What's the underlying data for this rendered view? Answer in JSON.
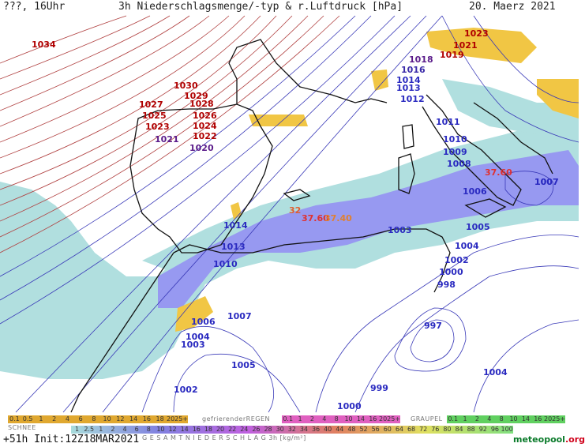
{
  "header": {
    "left": "???, 16Uhr",
    "title": "3h Niederschlagsmenge/-typ & r.Luftdruck [hPa]",
    "date": "20. Maerz 2021"
  },
  "pressure_labels": [
    {
      "text": "1034",
      "color": "#b00000"
    },
    {
      "text": "1030",
      "color": "#b00000"
    },
    {
      "text": "1029",
      "color": "#b00000"
    },
    {
      "text": "1028",
      "color": "#b00000"
    },
    {
      "text": "1027",
      "color": "#b00000"
    },
    {
      "text": "1026",
      "color": "#b00000"
    },
    {
      "text": "1025",
      "color": "#b00000"
    },
    {
      "text": "1024",
      "color": "#b00000"
    },
    {
      "text": "1023",
      "color": "#b00000"
    },
    {
      "text": "1022",
      "color": "#b00000"
    },
    {
      "text": "1021",
      "color": "#5a1b8a"
    },
    {
      "text": "1020",
      "color": "#5a1b8a"
    },
    {
      "text": "1023",
      "color": "#b00000"
    },
    {
      "text": "1021",
      "color": "#b00000"
    },
    {
      "text": "1019",
      "color": "#b00000"
    },
    {
      "text": "1018",
      "color": "#5a1b8a"
    },
    {
      "text": "1016",
      "color": "#3a2aa8"
    },
    {
      "text": "1014",
      "color": "#2a2ac0"
    },
    {
      "text": "1013",
      "color": "#2a2ac0"
    },
    {
      "text": "1012",
      "color": "#2a2ac0"
    },
    {
      "text": "1011",
      "color": "#2a2ac0"
    },
    {
      "text": "1010",
      "color": "#2a2ac0"
    },
    {
      "text": "1009",
      "color": "#2a2ac0"
    },
    {
      "text": "1008",
      "color": "#2a2ac0"
    },
    {
      "text": "1007",
      "color": "#2a2ac0"
    },
    {
      "text": "1006",
      "color": "#2a2ac0"
    },
    {
      "text": "1014",
      "color": "#2a2ac0"
    },
    {
      "text": "1013",
      "color": "#2a2ac0"
    },
    {
      "text": "1010",
      "color": "#2a2ac0"
    },
    {
      "text": "1003",
      "color": "#2a2ac0"
    },
    {
      "text": "1005",
      "color": "#2a2ac0"
    },
    {
      "text": "1004",
      "color": "#2a2ac0"
    },
    {
      "text": "1002",
      "color": "#2a2ac0"
    },
    {
      "text": "1000",
      "color": "#2a2ac0"
    },
    {
      "text": "998",
      "color": "#2a2ac0"
    },
    {
      "text": "997",
      "color": "#2a2ac0"
    },
    {
      "text": "1007",
      "color": "#2a2ac0"
    },
    {
      "text": "1006",
      "color": "#2a2ac0"
    },
    {
      "text": "1004",
      "color": "#2a2ac0"
    },
    {
      "text": "1003",
      "color": "#2a2ac0"
    },
    {
      "text": "1005",
      "color": "#2a2ac0"
    },
    {
      "text": "1002",
      "color": "#2a2ac0"
    },
    {
      "text": "1000",
      "color": "#2a2ac0"
    },
    {
      "text": "999",
      "color": "#2a2ac0"
    },
    {
      "text": "1004",
      "color": "#2a2ac0"
    },
    {
      "text": "37.60",
      "color": "#e03030"
    },
    {
      "text": "37.60",
      "color": "#e03030"
    },
    {
      "text": "32",
      "color": "#e06030"
    },
    {
      "text": "37.40",
      "color": "#e08030"
    },
    {
      "text": "1007",
      "color": "#2a2ac0"
    }
  ],
  "legend": {
    "snow": {
      "caption": "SCHNEE",
      "values": [
        "0.1",
        "0.5",
        "1",
        "2",
        "4",
        "6",
        "8",
        "10",
        "12",
        "14",
        "16",
        "18",
        "2025+"
      ]
    },
    "freezing_rain": {
      "caption": "gefrierenderREGEN",
      "values": [
        "0.1",
        "1",
        "2",
        "4",
        "8",
        "10",
        "14",
        "16",
        "2025+"
      ]
    },
    "graupel": {
      "caption": "GRAUPEL",
      "values": [
        "0.1",
        "1",
        "2",
        "4",
        "8",
        "10",
        "14",
        "16",
        "2025+"
      ]
    },
    "total": {
      "caption": "G E S A M T N I E D E R S C H L A G   3h  [kg/m²]",
      "values": [
        "1",
        "2.5",
        "1",
        "2",
        "4",
        "6",
        "8",
        "10",
        "12",
        "14",
        "16",
        "18",
        "20",
        "22",
        "24",
        "26",
        "28",
        "30",
        "32",
        "34",
        "36",
        "40",
        "44",
        "48",
        "52",
        "56",
        "60",
        "64",
        "68",
        "72",
        "76",
        "80",
        "84",
        "88",
        "92",
        "96",
        "100"
      ]
    }
  },
  "footer": {
    "run": "+51h Init:12Z18MAR2021"
  },
  "brand": {
    "prefix": "",
    "name": "meteopool",
    "suffix": ".org"
  },
  "colors": {
    "snow_bar": "#e0a830",
    "freezing_bar": "#e060c0",
    "graupel_bar": "#60d060",
    "total_bar": "#8080e0",
    "sea": "#ffffff",
    "precip_light": "#a8dcdc",
    "precip_medium": "#8c8ef0",
    "precip_snow": "#f0c030"
  }
}
